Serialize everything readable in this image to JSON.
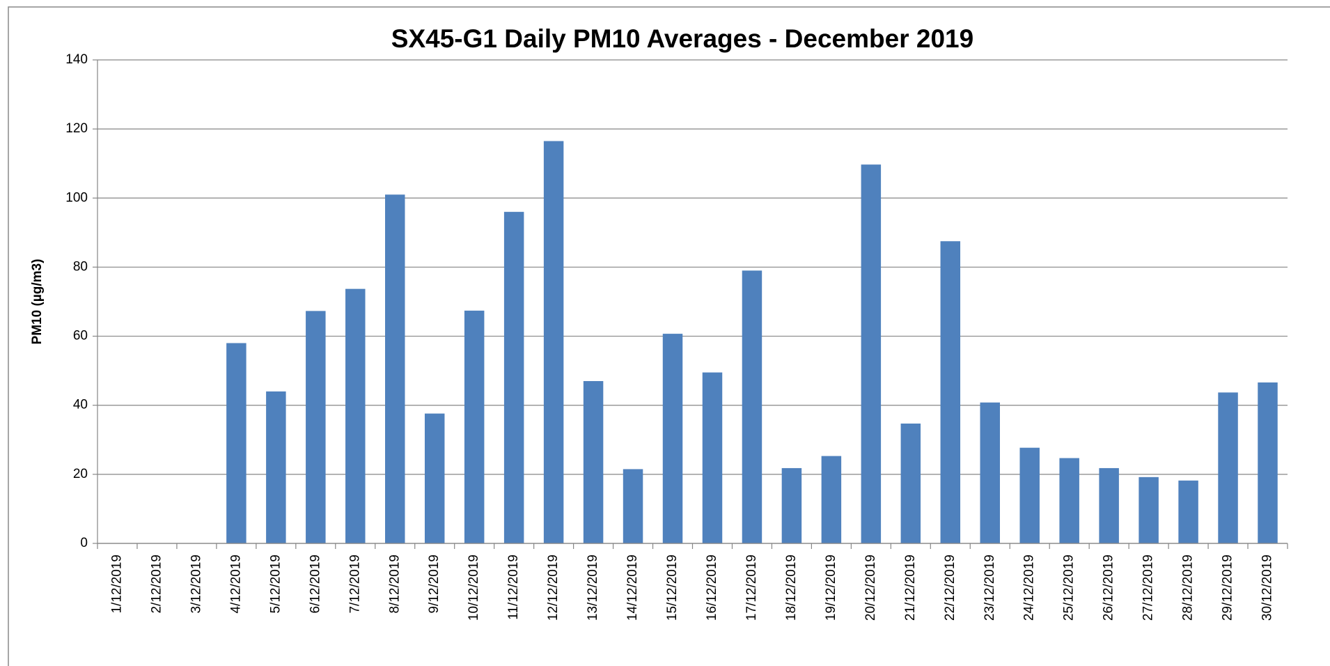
{
  "chart_data": {
    "type": "bar",
    "title": "SX45-G1 Daily PM10 Averages - December 2019",
    "y_label": "PM10 (µg/m3)",
    "categories": [
      "1/12/2019",
      "2/12/2019",
      "3/12/2019",
      "4/12/2019",
      "5/12/2019",
      "6/12/2019",
      "7/12/2019",
      "8/12/2019",
      "9/12/2019",
      "10/12/2019",
      "11/12/2019",
      "12/12/2019",
      "13/12/2019",
      "14/12/2019",
      "15/12/2019",
      "16/12/2019",
      "17/12/2019",
      "18/12/2019",
      "19/12/2019",
      "20/12/2019",
      "21/12/2019",
      "22/12/2019",
      "23/12/2019",
      "24/12/2019",
      "25/12/2019",
      "26/12/2019",
      "27/12/2019",
      "28/12/2019",
      "29/12/2019",
      "30/12/2019"
    ],
    "values": [
      null,
      null,
      null,
      58,
      44,
      67.3,
      73.7,
      101,
      37.6,
      67.4,
      96,
      116.5,
      47,
      21.5,
      60.7,
      49.5,
      79,
      21.8,
      25.3,
      109.7,
      34.7,
      87.5,
      40.8,
      27.7,
      24.7,
      21.8,
      19.2,
      18.2,
      43.7,
      46.6
    ],
    "color": "#4f81bd",
    "ylim": [
      0,
      140
    ],
    "yticks": [
      0,
      20,
      40,
      60,
      80,
      100,
      120,
      140
    ],
    "grid": true
  }
}
